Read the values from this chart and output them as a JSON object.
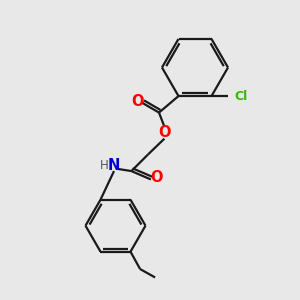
{
  "bg_color": "#e8e8e8",
  "bond_color": "#1a1a1a",
  "O_color": "#ff0000",
  "N_color": "#0000cc",
  "Cl_color": "#33bb00",
  "H_color": "#555555",
  "lw": 1.6,
  "figsize": [
    3.0,
    3.0
  ],
  "dpi": 100,
  "xlim": [
    0,
    10
  ],
  "ylim": [
    0,
    10
  ]
}
